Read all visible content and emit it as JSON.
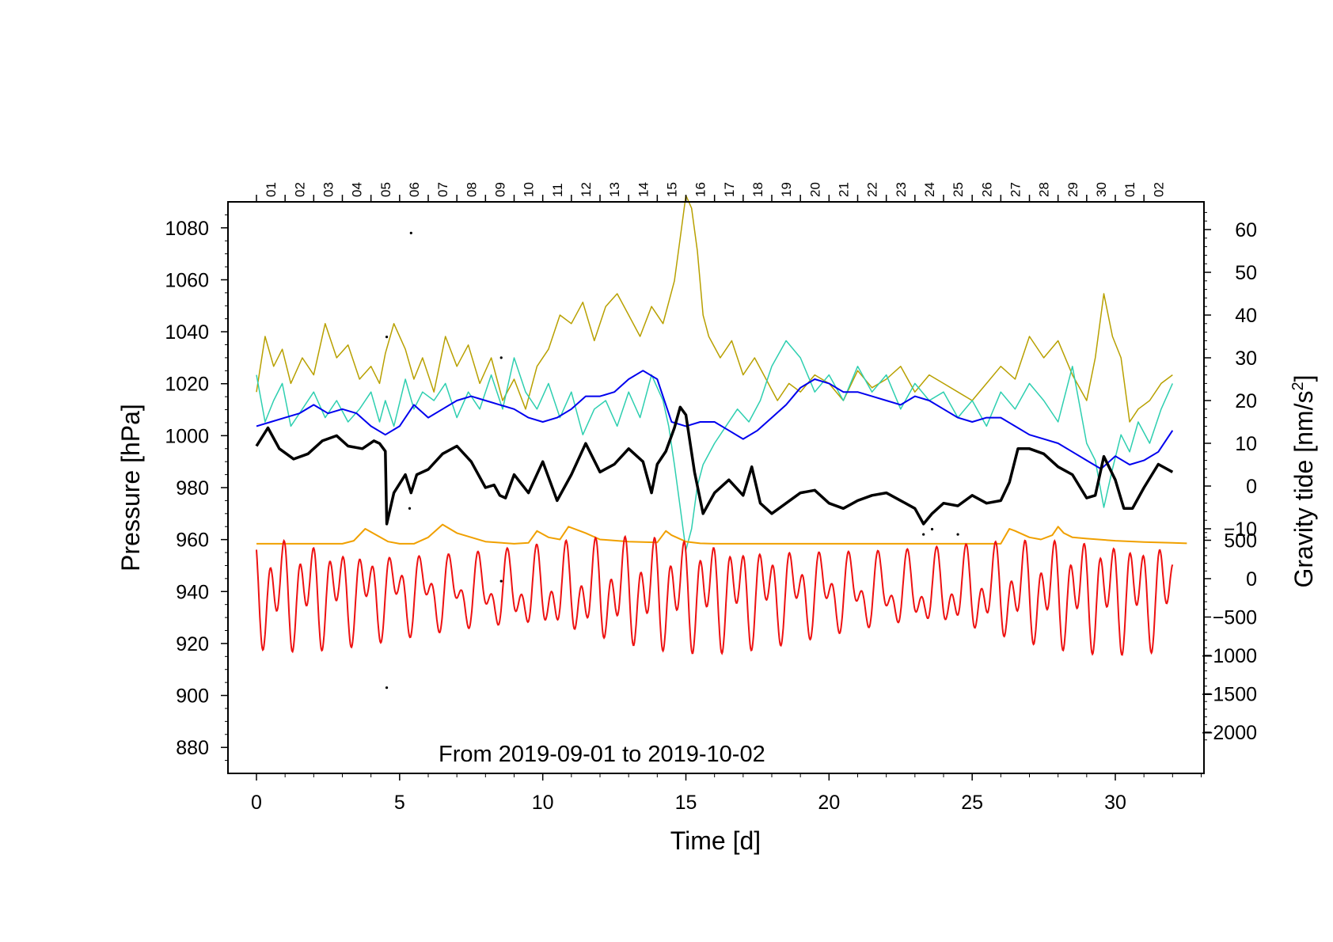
{
  "chart_data": {
    "type": "line",
    "annotation": "From 2019-09-01 to 2019-10-02",
    "xlabel": "Time [d]",
    "xlim": [
      -1,
      33
    ],
    "xticks": [
      0,
      5,
      10,
      15,
      20,
      25,
      30
    ],
    "ylabel_left": "Pressure [hPa]",
    "ylim_left": [
      870,
      1090
    ],
    "yticks_left": [
      880,
      900,
      920,
      940,
      960,
      980,
      1000,
      1020,
      1040,
      1060,
      1080
    ],
    "ylabel_right_base": "Gravity tide [nm/s",
    "ylabel_right_sup": "2",
    "ylabel_right_end": "]",
    "right_upper_axis": {
      "data_range": [
        -20,
        65
      ],
      "ticks": [
        -10,
        0,
        10,
        20,
        30,
        40,
        50,
        60
      ]
    },
    "right_lower_axis": {
      "data_range": [
        -2100,
        700
      ],
      "ticks": [
        -2000,
        -1500,
        -1000,
        -500,
        0,
        500
      ]
    },
    "day_labels": [
      "01",
      "02",
      "03",
      "04",
      "05",
      "06",
      "07",
      "08",
      "09",
      "10",
      "11",
      "12",
      "13",
      "14",
      "15",
      "16",
      "17",
      "18",
      "19",
      "20",
      "21",
      "22",
      "23",
      "24",
      "25",
      "26",
      "27",
      "28",
      "29",
      "30",
      "01",
      "02"
    ],
    "colors": {
      "pressure": "#000000",
      "blue": "#0000ee",
      "olive": "#b8a000",
      "teal": "#2ecfb0",
      "orange": "#f0a000",
      "red": "#ee1111"
    },
    "series": [
      {
        "name": "pressure",
        "axis": "left",
        "x": [
          0,
          0.4,
          0.8,
          1.3,
          1.8,
          2.3,
          2.8,
          3.2,
          3.7,
          4.1,
          4.3,
          4.5,
          4.55,
          4.8,
          5.2,
          5.4,
          5.6,
          6,
          6.5,
          7,
          7.5,
          8,
          8.3,
          8.5,
          8.7,
          9,
          9.5,
          10,
          10.5,
          11,
          11.5,
          12,
          12.5,
          13,
          13.5,
          13.8,
          14,
          14.3,
          14.6,
          14.8,
          15,
          15.3,
          15.6,
          16,
          16.5,
          17,
          17.3,
          17.6,
          18,
          18.5,
          19,
          19.5,
          20,
          20.5,
          21,
          21.5,
          22,
          22.5,
          23,
          23.3,
          23.6,
          24,
          24.5,
          25,
          25.5,
          26,
          26.3,
          26.6,
          27,
          27.5,
          28,
          28.5,
          29,
          29.3,
          29.6,
          30,
          30.3,
          30.6,
          31,
          31.5,
          32
        ],
        "y": [
          996,
          1003,
          995,
          991,
          993,
          998,
          1000,
          996,
          995,
          998,
          997,
          994,
          966,
          978,
          985,
          978,
          985,
          987,
          993,
          996,
          990,
          980,
          981,
          977,
          976,
          985,
          978,
          990,
          975,
          985,
          997,
          986,
          989,
          995,
          990,
          978,
          989,
          994,
          1003,
          1011,
          1008,
          986,
          970,
          978,
          983,
          977,
          988,
          974,
          970,
          974,
          978,
          979,
          974,
          972,
          975,
          977,
          978,
          975,
          972,
          966,
          970,
          974,
          973,
          977,
          974,
          975,
          982,
          995,
          995,
          993,
          988,
          985,
          976,
          977,
          992,
          983,
          972,
          972,
          980,
          989,
          986
        ]
      },
      {
        "name": "blue",
        "axis": "right_upper",
        "x": [
          0,
          0.5,
          1,
          1.5,
          2,
          2.5,
          3,
          3.5,
          4,
          4.5,
          5,
          5.5,
          6,
          6.5,
          7,
          7.5,
          8,
          8.5,
          9,
          9.5,
          10,
          10.5,
          11,
          11.5,
          12,
          12.5,
          13,
          13.5,
          14,
          14.5,
          15,
          15.5,
          16,
          16.5,
          17,
          17.5,
          18,
          18.5,
          19,
          19.5,
          20,
          20.5,
          21,
          21.5,
          22,
          22.5,
          23,
          23.5,
          24,
          24.5,
          25,
          25.5,
          26,
          26.5,
          27,
          27.5,
          28,
          28.5,
          29,
          29.5,
          30,
          30.5,
          31,
          31.5,
          32
        ],
        "y": [
          14,
          15,
          16,
          17,
          19,
          17,
          18,
          17,
          14,
          12,
          14,
          19,
          16,
          18,
          20,
          21,
          20,
          19,
          18,
          16,
          15,
          16,
          18,
          21,
          21,
          22,
          25,
          27,
          25,
          15,
          14,
          15,
          15,
          13,
          11,
          13,
          16,
          19,
          23,
          25,
          24,
          22,
          22,
          21,
          20,
          19,
          21,
          20,
          18,
          16,
          15,
          16,
          16,
          14,
          12,
          11,
          10,
          8,
          6,
          4,
          7,
          5,
          6,
          8,
          13
        ]
      },
      {
        "name": "olive",
        "axis": "right_upper",
        "x": [
          0,
          0.3,
          0.6,
          0.9,
          1.2,
          1.6,
          2,
          2.4,
          2.8,
          3.2,
          3.6,
          4,
          4.3,
          4.5,
          4.8,
          5.2,
          5.5,
          5.8,
          6.2,
          6.6,
          7,
          7.4,
          7.8,
          8.2,
          8.6,
          9,
          9.4,
          9.8,
          10.2,
          10.6,
          11,
          11.4,
          11.8,
          12.2,
          12.6,
          13,
          13.4,
          13.8,
          14.2,
          14.6,
          14.8,
          15,
          15.2,
          15.4,
          15.6,
          15.8,
          16.2,
          16.6,
          17,
          17.4,
          17.8,
          18.2,
          18.6,
          19,
          19.5,
          20,
          20.5,
          21,
          21.5,
          22,
          22.5,
          23,
          23.5,
          24,
          24.5,
          25,
          25.5,
          26,
          26.5,
          27,
          27.5,
          28,
          28.5,
          29,
          29.3,
          29.6,
          29.9,
          30.2,
          30.5,
          30.8,
          31.2,
          31.6,
          32
        ],
        "y": [
          22,
          35,
          28,
          32,
          24,
          30,
          26,
          38,
          30,
          33,
          25,
          28,
          24,
          31,
          38,
          32,
          25,
          30,
          22,
          35,
          28,
          33,
          24,
          30,
          20,
          25,
          18,
          28,
          32,
          40,
          38,
          43,
          34,
          42,
          45,
          40,
          35,
          42,
          38,
          48,
          58,
          68,
          65,
          55,
          40,
          35,
          30,
          34,
          26,
          30,
          25,
          20,
          24,
          22,
          26,
          24,
          20,
          27,
          23,
          25,
          28,
          22,
          26,
          24,
          22,
          20,
          24,
          28,
          25,
          35,
          30,
          34,
          26,
          20,
          30,
          45,
          35,
          30,
          15,
          18,
          20,
          24,
          26
        ]
      },
      {
        "name": "teal",
        "axis": "right_upper",
        "x": [
          0,
          0.3,
          0.6,
          0.9,
          1.2,
          1.6,
          2,
          2.4,
          2.8,
          3.2,
          3.6,
          4,
          4.3,
          4.5,
          4.8,
          5.2,
          5.5,
          5.8,
          6.2,
          6.6,
          7,
          7.4,
          7.8,
          8.2,
          8.6,
          9,
          9.4,
          9.8,
          10.2,
          10.6,
          11,
          11.4,
          11.8,
          12.2,
          12.6,
          13,
          13.4,
          13.8,
          14.2,
          14.4,
          14.6,
          14.8,
          15,
          15.2,
          15.4,
          15.6,
          16,
          16.4,
          16.8,
          17.2,
          17.6,
          18,
          18.5,
          19,
          19.5,
          20,
          20.5,
          21,
          21.5,
          22,
          22.5,
          23,
          23.5,
          24,
          24.5,
          25,
          25.5,
          26,
          26.5,
          27,
          27.5,
          28,
          28.5,
          29,
          29.3,
          29.6,
          29.9,
          30.2,
          30.5,
          30.8,
          31.2,
          31.6,
          32
        ],
        "y": [
          26,
          15,
          20,
          24,
          14,
          18,
          22,
          16,
          20,
          15,
          18,
          22,
          15,
          20,
          14,
          25,
          18,
          22,
          20,
          24,
          16,
          22,
          18,
          26,
          18,
          30,
          22,
          18,
          24,
          16,
          22,
          12,
          18,
          20,
          14,
          22,
          16,
          26,
          20,
          14,
          5,
          -5,
          -15,
          -10,
          0,
          5,
          10,
          14,
          18,
          15,
          20,
          28,
          34,
          30,
          22,
          26,
          20,
          28,
          22,
          26,
          18,
          24,
          20,
          22,
          16,
          20,
          14,
          22,
          18,
          24,
          20,
          15,
          28,
          10,
          6,
          -5,
          4,
          12,
          8,
          15,
          10,
          18,
          24
        ]
      },
      {
        "name": "orange",
        "axis": "right_upper",
        "x": [
          0,
          1,
          2,
          3,
          3.4,
          3.8,
          4.2,
          4.6,
          5,
          5.5,
          6,
          6.5,
          7,
          8,
          9,
          9.5,
          9.8,
          10.2,
          10.6,
          10.9,
          11.5,
          12,
          13,
          14,
          14.3,
          14.5,
          15,
          15.5,
          16,
          18,
          20,
          22,
          24,
          26,
          26.3,
          26.5,
          27,
          27.4,
          27.8,
          28,
          28.2,
          28.5,
          29,
          30,
          31,
          32,
          32.5
        ],
        "y": [
          -13.5,
          -13.5,
          -13.5,
          -13.5,
          -12.8,
          -10,
          -11.5,
          -13,
          -13.5,
          -13.5,
          -12,
          -9,
          -11,
          -13,
          -13.5,
          -13.3,
          -10.5,
          -12,
          -12.5,
          -9.5,
          -11,
          -12.5,
          -13,
          -13.2,
          -10.5,
          -11.5,
          -13,
          -13.4,
          -13.5,
          -13.5,
          -13.5,
          -13.5,
          -13.5,
          -13.5,
          -10,
          -10.5,
          -12,
          -12.5,
          -11.5,
          -9.5,
          -11,
          -12,
          -12.3,
          -12.8,
          -13.1,
          -13.3,
          -13.4
        ]
      },
      {
        "name": "red",
        "axis": "right_lower",
        "cosine_amplitude_semidiurnal": 500,
        "cosine_amplitude_diurnal": 320,
        "t_start": 0,
        "t_end": 32,
        "axis_ticks": [
          -2000,
          -1500,
          -1000,
          -500,
          0,
          500
        ]
      }
    ],
    "outliers_pressure": [
      [
        4.55,
        1038
      ],
      [
        5.4,
        1078
      ],
      [
        5.35,
        972
      ],
      [
        8.55,
        1030
      ],
      [
        8.55,
        944
      ],
      [
        4.55,
        903
      ],
      [
        23.3,
        962
      ],
      [
        23.6,
        964
      ],
      [
        24.5,
        962
      ]
    ]
  }
}
